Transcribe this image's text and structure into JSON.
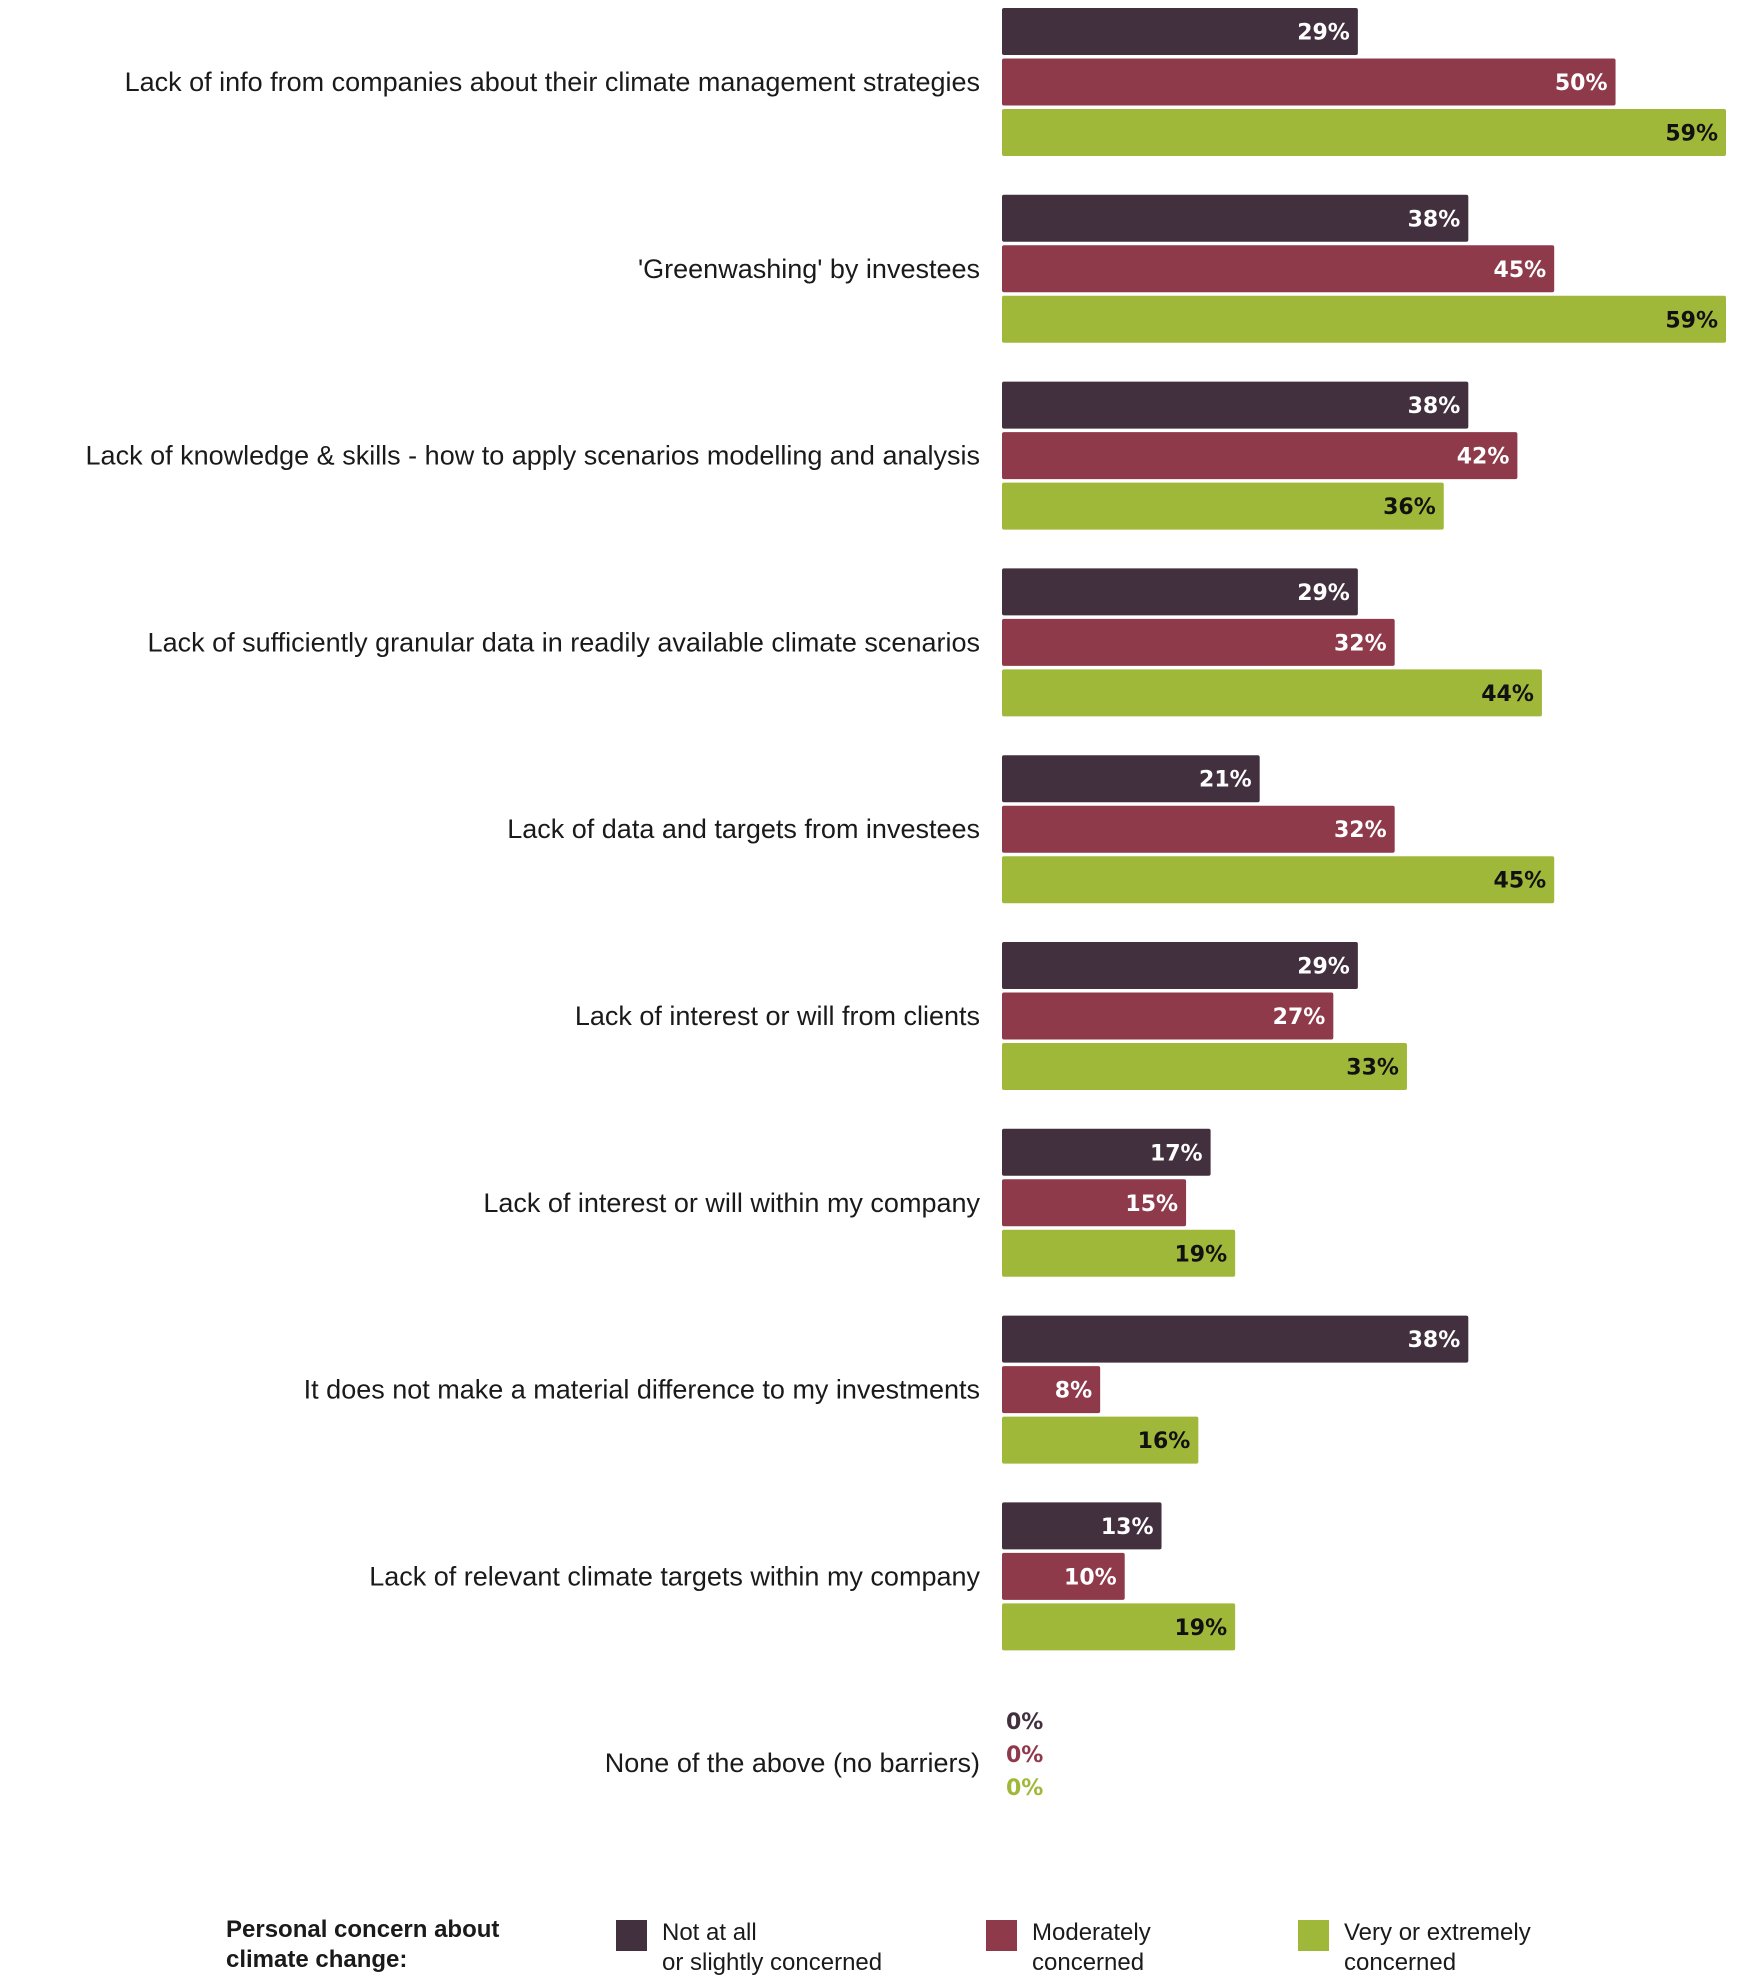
{
  "chart_data": {
    "type": "bar",
    "orientation": "horizontal",
    "categories": [
      "Lack of info from companies about their climate management strategies",
      "'Greenwashing' by investees",
      "Lack of knowledge & skills - how to apply scenarios modelling and analysis",
      "Lack of sufficiently granular data in readily available climate scenarios",
      "Lack of data and targets from investees",
      "Lack of interest or will from clients",
      "Lack of interest or will within my company",
      "It does not make a material difference to my investments",
      "Lack of relevant climate targets within my company",
      "None of the above (no barriers)"
    ],
    "series": [
      {
        "name": "Not at all or slightly concerned",
        "color": "#42303f",
        "label_color": "#ffffff",
        "values": [
          29,
          38,
          38,
          29,
          21,
          29,
          17,
          38,
          13,
          0
        ]
      },
      {
        "name": "Moderately concerned",
        "color": "#8e3a4b",
        "label_color": "#ffffff",
        "values": [
          50,
          45,
          42,
          32,
          32,
          27,
          15,
          8,
          10,
          0
        ]
      },
      {
        "name": "Very or extremely concerned",
        "color": "#a0b83a",
        "label_color": "#111111",
        "values": [
          59,
          59,
          36,
          44,
          45,
          33,
          19,
          16,
          19,
          0
        ]
      }
    ],
    "value_suffix": "%",
    "xlim": [
      0,
      59
    ],
    "grid": false,
    "legend_title": "Personal concern about climate change:",
    "legend_position": "bottom"
  }
}
